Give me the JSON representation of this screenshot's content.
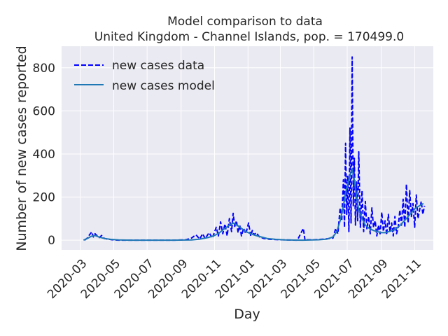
{
  "chart_data": {
    "type": "line",
    "title": "Model comparison to data",
    "subtitle": "United Kingdom - Channel Islands, pop. = 170499.0",
    "xlabel": "Day",
    "ylabel": "Number of new cases reported",
    "xlim": [
      "2020-01-27",
      "2021-12-05"
    ],
    "ylim": [
      -45,
      900
    ],
    "x_ticks": [
      "2020-03",
      "2020-05",
      "2020-07",
      "2020-09",
      "2020-11",
      "2021-01",
      "2021-03",
      "2021-05",
      "2021-07",
      "2021-09",
      "2021-11"
    ],
    "y_ticks": [
      0,
      200,
      400,
      600,
      800
    ],
    "grid": true,
    "legend_position": "upper-left",
    "colors": {
      "background": "#eaeaf2",
      "grid": "#ffffff",
      "data": "#0000ff",
      "model": "#1f77b4"
    },
    "series": [
      {
        "name": "new cases data",
        "style": "dashed",
        "x": [
          "2020-03-09",
          "2020-03-14",
          "2020-03-18",
          "2020-03-22",
          "2020-03-25",
          "2020-03-28",
          "2020-04-01",
          "2020-04-05",
          "2020-04-09",
          "2020-04-14",
          "2020-04-20",
          "2020-04-28",
          "2020-05-10",
          "2020-06-01",
          "2020-07-15",
          "2020-08-20",
          "2020-09-10",
          "2020-09-20",
          "2020-09-28",
          "2020-10-05",
          "2020-10-10",
          "2020-10-15",
          "2020-10-22",
          "2020-10-28",
          "2020-11-04",
          "2020-11-08",
          "2020-11-12",
          "2020-11-16",
          "2020-11-20",
          "2020-11-24",
          "2020-11-28",
          "2020-12-02",
          "2020-12-05",
          "2020-12-08",
          "2020-12-11",
          "2020-12-14",
          "2020-12-17",
          "2020-12-20",
          "2020-12-24",
          "2020-12-28",
          "2021-01-02",
          "2021-01-06",
          "2021-01-09",
          "2021-01-12",
          "2021-01-16",
          "2021-01-22",
          "2021-01-30",
          "2021-02-10",
          "2021-03-01",
          "2021-04-01",
          "2021-04-12",
          "2021-04-15",
          "2021-04-18",
          "2021-05-01",
          "2021-05-20",
          "2021-06-05",
          "2021-06-10",
          "2021-06-14",
          "2021-06-18",
          "2021-06-21",
          "2021-06-24",
          "2021-06-26",
          "2021-06-28",
          "2021-06-30",
          "2021-07-02",
          "2021-07-04",
          "2021-07-06",
          "2021-07-08",
          "2021-07-10",
          "2021-07-12",
          "2021-07-14",
          "2021-07-16",
          "2021-07-18",
          "2021-07-20",
          "2021-07-22",
          "2021-07-25",
          "2021-07-28",
          "2021-07-31",
          "2021-08-03",
          "2021-08-06",
          "2021-08-09",
          "2021-08-12",
          "2021-08-15",
          "2021-08-18",
          "2021-08-21",
          "2021-08-24",
          "2021-08-27",
          "2021-08-30",
          "2021-09-02",
          "2021-09-05",
          "2021-09-08",
          "2021-09-11",
          "2021-09-14",
          "2021-09-17",
          "2021-09-20",
          "2021-09-23",
          "2021-09-26",
          "2021-09-29",
          "2021-10-02",
          "2021-10-05",
          "2021-10-08",
          "2021-10-11",
          "2021-10-14",
          "2021-10-17",
          "2021-10-20",
          "2021-10-23",
          "2021-10-26",
          "2021-10-29",
          "2021-11-01",
          "2021-11-04",
          "2021-11-07",
          "2021-11-10",
          "2021-11-13",
          "2021-11-16",
          "2021-11-19"
        ],
        "values": [
          0,
          10,
          25,
          38,
          15,
          30,
          20,
          12,
          22,
          8,
          5,
          2,
          0,
          0,
          0,
          0,
          2,
          10,
          25,
          5,
          30,
          8,
          35,
          10,
          60,
          20,
          85,
          30,
          75,
          20,
          100,
          40,
          125,
          60,
          90,
          35,
          70,
          20,
          55,
          30,
          80,
          20,
          45,
          25,
          35,
          15,
          8,
          4,
          2,
          0,
          55,
          0,
          2,
          2,
          5,
          10,
          55,
          30,
          150,
          90,
          280,
          60,
          450,
          120,
          300,
          40,
          520,
          80,
          850,
          160,
          380,
          70,
          270,
          90,
          410,
          60,
          230,
          40,
          180,
          50,
          110,
          30,
          150,
          60,
          90,
          20,
          70,
          30,
          130,
          40,
          90,
          25,
          120,
          40,
          80,
          20,
          110,
          30,
          60,
          140,
          70,
          190,
          60,
          260,
          80,
          230,
          110,
          170,
          60,
          210,
          100,
          140,
          180,
          120,
          160
        ]
      },
      {
        "name": "new cases model",
        "style": "solid",
        "x": [
          "2020-03-07",
          "2020-03-14",
          "2020-03-21",
          "2020-03-28",
          "2020-04-05",
          "2020-04-14",
          "2020-04-25",
          "2020-05-10",
          "2020-06-01",
          "2020-07-15",
          "2020-08-20",
          "2020-09-20",
          "2020-10-05",
          "2020-10-20",
          "2020-11-01",
          "2020-11-10",
          "2020-11-20",
          "2020-11-28",
          "2020-12-05",
          "2020-12-12",
          "2020-12-20",
          "2020-12-28",
          "2021-01-06",
          "2021-01-15",
          "2021-01-25",
          "2021-02-05",
          "2021-02-20",
          "2021-03-10",
          "2021-04-10",
          "2021-05-10",
          "2021-05-25",
          "2021-06-05",
          "2021-06-12",
          "2021-06-18",
          "2021-06-24",
          "2021-06-28",
          "2021-07-02",
          "2021-07-06",
          "2021-07-10",
          "2021-07-14",
          "2021-07-18",
          "2021-07-22",
          "2021-07-28",
          "2021-08-03",
          "2021-08-10",
          "2021-08-18",
          "2021-08-25",
          "2021-09-01",
          "2021-09-08",
          "2021-09-15",
          "2021-09-22",
          "2021-09-29",
          "2021-10-06",
          "2021-10-13",
          "2021-10-20",
          "2021-10-27",
          "2021-11-03",
          "2021-11-10",
          "2021-11-17"
        ],
        "values": [
          0,
          8,
          18,
          22,
          14,
          8,
          4,
          1,
          0,
          0,
          0,
          1,
          5,
          12,
          22,
          35,
          55,
          70,
          80,
          70,
          55,
          40,
          30,
          22,
          15,
          8,
          4,
          1,
          0,
          2,
          5,
          15,
          40,
          90,
          160,
          220,
          260,
          300,
          330,
          280,
          200,
          140,
          100,
          70,
          55,
          45,
          40,
          35,
          35,
          40,
          45,
          55,
          70,
          90,
          110,
          130,
          150,
          160,
          170
        ]
      }
    ]
  }
}
